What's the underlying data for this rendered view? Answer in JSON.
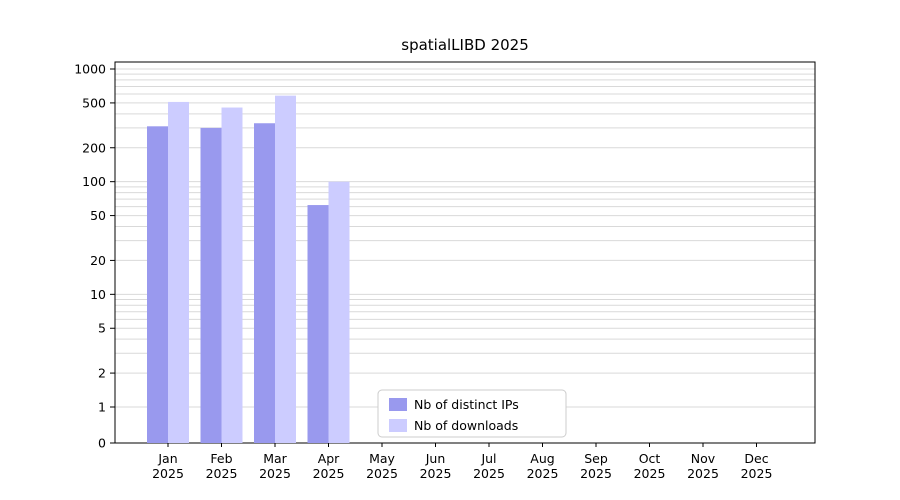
{
  "figure": {
    "background": "#ffffff"
  },
  "chart_data": {
    "type": "bar",
    "title": "spatialLIBD 2025",
    "categories": [
      "Jan 2025",
      "Feb 2025",
      "Mar 2025",
      "Apr 2025",
      "May 2025",
      "Jun 2025",
      "Jul 2025",
      "Aug 2025",
      "Sep 2025",
      "Oct 2025",
      "Nov 2025",
      "Dec 2025"
    ],
    "series": [
      {
        "name": "Nb of distinct IPs",
        "color": "#9999ee",
        "values": [
          310,
          300,
          330,
          62,
          null,
          null,
          null,
          null,
          null,
          null,
          null,
          null
        ]
      },
      {
        "name": "Nb of downloads",
        "color": "#ccccff",
        "values": [
          510,
          455,
          580,
          100,
          null,
          null,
          null,
          null,
          null,
          null,
          null,
          null
        ]
      }
    ],
    "yscale": "log-with-zero",
    "yticks": [
      0,
      1,
      2,
      5,
      10,
      20,
      50,
      100,
      200,
      500,
      1000
    ],
    "ylim": [
      0,
      1000
    ],
    "grid": true,
    "gridline_color": "#d9d9d9",
    "axis_color": "#000000",
    "legend": {
      "position": "bottom-center",
      "background": "#ffffff",
      "border_color": "#cccccc"
    }
  }
}
